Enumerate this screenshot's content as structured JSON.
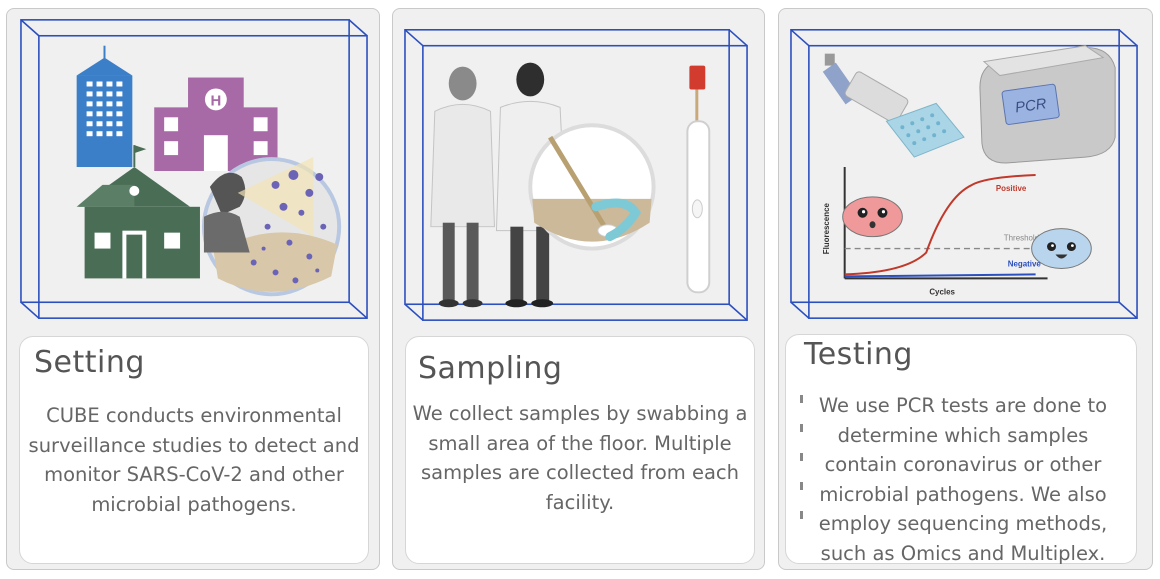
{
  "panels": [
    {
      "title": "Setting",
      "description": "CUBE conducts environmental surveillance studies to detect and monitor SARS-CoV-2 and other microbial pathogens."
    },
    {
      "title": "Sampling",
      "description": "We collect samples by swabbing a small area of the floor. Multiple samples are collected from each facility."
    },
    {
      "title": "Testing",
      "description": "We use PCR tests are done to determine which samples contain coronavirus or other microbial pathogens. We also employ sequencing methods, such as Omics and Multiplex."
    }
  ],
  "graph": {
    "y_label": "Fluorescence",
    "x_label": "Cycles",
    "positive_label": "Positive",
    "threshold_label": "Threshold",
    "negative_label": "Negative",
    "machine_label": "PCR",
    "hospital_letter": "H"
  },
  "colors": {
    "frame": "#2b4fbf",
    "panel_bg": "#f0f0f0",
    "positive": "#c0392b",
    "negative": "#2b4fbf"
  },
  "icons": [
    "office-building-icon",
    "hospital-icon",
    "school-icon",
    "aerosol-magnifier-icon",
    "scientist-female-icon",
    "scientist-male-icon",
    "swab-magnifier-icon",
    "test-tube-icon",
    "pipette-icon",
    "well-plate-icon",
    "pcr-machine-icon",
    "pcr-amplification-graph",
    "positive-virus-face-icon",
    "negative-virus-face-icon"
  ]
}
